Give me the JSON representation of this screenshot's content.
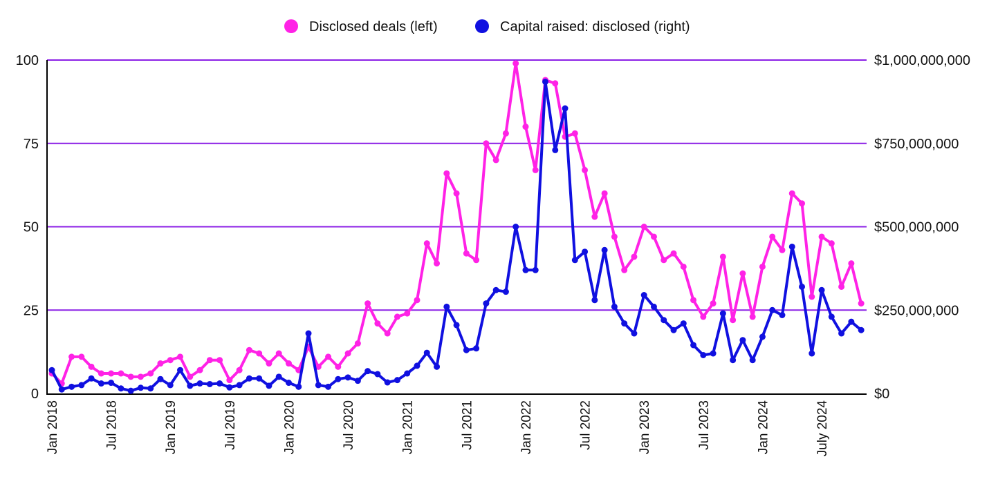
{
  "chart_data": {
    "type": "line",
    "title": "",
    "legend": {
      "placement": "top-center",
      "entries": [
        "Disclosed deals (left)",
        "Capital raised: disclosed (right)"
      ]
    },
    "x_start": "Jan 2018",
    "x_unit": "month",
    "x_tick_labels": [
      "Jan 2018",
      "Jul 2018",
      "Jan 2019",
      "Jul 2019",
      "Jan 2020",
      "Jul 2020",
      "Jan 2021",
      "Jul 2021",
      "Jan 2022",
      "Jul 2022",
      "Jan 2023",
      "Jul 2023",
      "Jan 2024",
      "July 2024"
    ],
    "x_tick_month_index": [
      0,
      6,
      12,
      18,
      24,
      30,
      36,
      42,
      48,
      54,
      60,
      66,
      72,
      78
    ],
    "y_left": {
      "ylim": [
        0,
        100
      ],
      "ticks": [
        "0",
        "25",
        "50",
        "75",
        "100"
      ]
    },
    "y_right": {
      "ylim": [
        0,
        1000000000
      ],
      "ticks": [
        "$0",
        "$250,000,000",
        "$500,000,000",
        "$750,000,000",
        "$1,000,000,000"
      ]
    },
    "grid": true,
    "series": [
      {
        "name": "Disclosed deals (left)",
        "axis": "left",
        "color": "#ff22e6",
        "values": [
          6,
          3,
          11,
          11,
          8,
          6,
          6,
          6,
          5,
          5,
          6,
          9,
          10,
          11,
          5,
          7,
          10,
          10,
          4,
          7,
          13,
          12,
          9,
          12,
          9,
          7,
          14,
          8,
          11,
          8,
          12,
          15,
          27,
          21,
          18,
          23,
          24,
          28,
          45,
          39,
          66,
          60,
          42,
          40,
          75,
          70,
          78,
          99,
          80,
          67,
          94,
          93,
          77,
          78,
          67,
          53,
          60,
          47,
          37,
          41,
          50,
          47,
          40,
          42,
          38,
          28,
          23,
          27,
          41,
          22,
          36,
          23,
          38,
          47,
          43,
          60,
          57,
          29,
          47,
          45,
          32,
          39,
          27
        ]
      },
      {
        "name": "Capital raised: disclosed (right)",
        "axis": "right",
        "color": "#1010e0",
        "values": [
          70000000,
          12000000,
          20000000,
          25000000,
          45000000,
          30000000,
          32000000,
          15000000,
          8000000,
          17000000,
          15000000,
          43000000,
          25000000,
          70000000,
          23000000,
          30000000,
          28000000,
          30000000,
          18000000,
          25000000,
          45000000,
          45000000,
          23000000,
          50000000,
          32000000,
          20000000,
          180000000,
          25000000,
          20000000,
          43000000,
          48000000,
          38000000,
          67000000,
          58000000,
          33000000,
          40000000,
          60000000,
          83000000,
          122000000,
          80000000,
          260000000,
          205000000,
          130000000,
          135000000,
          270000000,
          310000000,
          305000000,
          500000000,
          370000000,
          370000000,
          935000000,
          730000000,
          855000000,
          400000000,
          425000000,
          280000000,
          430000000,
          260000000,
          210000000,
          180000000,
          295000000,
          260000000,
          220000000,
          190000000,
          210000000,
          145000000,
          115000000,
          120000000,
          240000000,
          100000000,
          160000000,
          100000000,
          170000000,
          250000000,
          235000000,
          440000000,
          320000000,
          120000000,
          310000000,
          230000000,
          180000000,
          215000000,
          190000000
        ]
      }
    ],
    "gridline_color": "#8a1ee6"
  }
}
